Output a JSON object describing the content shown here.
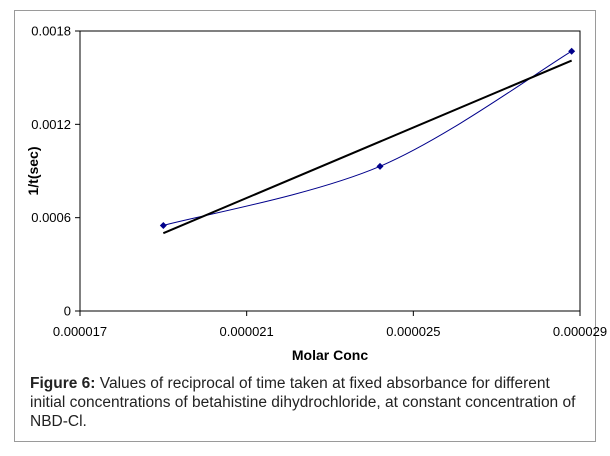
{
  "chart_data": {
    "type": "scatter",
    "title": "",
    "xlabel": "Molar Conc",
    "ylabel": "1/t(sec)",
    "xlim": [
      1.7e-05,
      2.9e-05
    ],
    "ylim": [
      0,
      0.0018
    ],
    "x_ticks": [
      1.7e-05,
      2.1e-05,
      2.5e-05,
      2.9e-05
    ],
    "x_tick_labels": [
      "0.000017",
      "0.000021",
      "0.000025",
      "0.000029"
    ],
    "y_ticks": [
      0,
      0.0006,
      0.0012,
      0.0018
    ],
    "y_tick_labels": [
      "0",
      "0.0006",
      "0.0012",
      "0.0018"
    ],
    "grid": false,
    "legend": "none",
    "series": [
      {
        "type": "line-markers",
        "color": "#00008b",
        "marker": "diamond",
        "x": [
          1.9e-05,
          2.42e-05,
          2.88e-05
        ],
        "y": [
          0.00055,
          0.00093,
          0.00167
        ]
      },
      {
        "type": "trendline",
        "color": "#000000",
        "x": [
          1.9e-05,
          2.88e-05
        ],
        "y": [
          0.0005,
          0.00161
        ]
      }
    ]
  },
  "caption": {
    "label": "Figure 6:",
    "text": " Values of reciprocal of time taken at fixed absorbance for different initial concentrations of betahistine dihydrochloride, at constant concentration of NBD-Cl."
  }
}
